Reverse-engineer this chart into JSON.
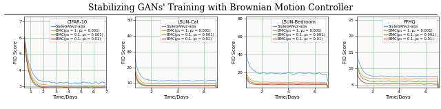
{
  "title": "Stabilizing GANs' Training with Brownian Motion Controller",
  "title_fontsize": 9,
  "panels": [
    {
      "dataset": "CIFAR-10",
      "xlim": [
        0.5,
        7
      ],
      "ylim": [
        2.9,
        7.3
      ],
      "xticks": [
        1,
        2,
        3,
        4,
        5,
        6,
        7
      ],
      "yticks": [
        3,
        4,
        5,
        6,
        7
      ],
      "xlabel": "Time/Days",
      "ylabel": "FID Score"
    },
    {
      "dataset": "LSUN-Cat",
      "xlim": [
        0.8,
        7
      ],
      "ylim": [
        7,
        52
      ],
      "xticks": [
        2,
        4,
        6
      ],
      "yticks": [
        10,
        20,
        30,
        40,
        50
      ],
      "xlabel": "Time/Days",
      "ylabel": "FID Score"
    },
    {
      "dataset": "LSUN-Bedroom",
      "xlim": [
        0.8,
        7
      ],
      "ylim": [
        3,
        82
      ],
      "xticks": [
        2,
        4,
        6
      ],
      "yticks": [
        20,
        40,
        60,
        80
      ],
      "xlabel": "Time/Days",
      "ylabel": "FID Score"
    },
    {
      "dataset": "FFHQ",
      "xlim": [
        0.8,
        7
      ],
      "ylim": [
        4,
        26
      ],
      "xticks": [
        2,
        4,
        6
      ],
      "yticks": [
        5,
        10,
        15,
        20,
        25
      ],
      "xlabel": "Time/Days",
      "ylabel": "FID Score"
    }
  ],
  "legend_labels": [
    "StyleGANv2-ada",
    "BMC(ρ₁ = 1, ρ₂ = 0.001)",
    "BMC(ρ₁ = 0.1, ρ₂ = 0.001)",
    "BMC(ρ₁ = 0.1, ρ₂ = 0.01)"
  ],
  "line_colors": [
    "#5599dd",
    "#ff9933",
    "#44aa44",
    "#cc3333"
  ],
  "background_color": "#ffffff",
  "grid_color": "#88cc88",
  "axes_bg": "#fafafa"
}
